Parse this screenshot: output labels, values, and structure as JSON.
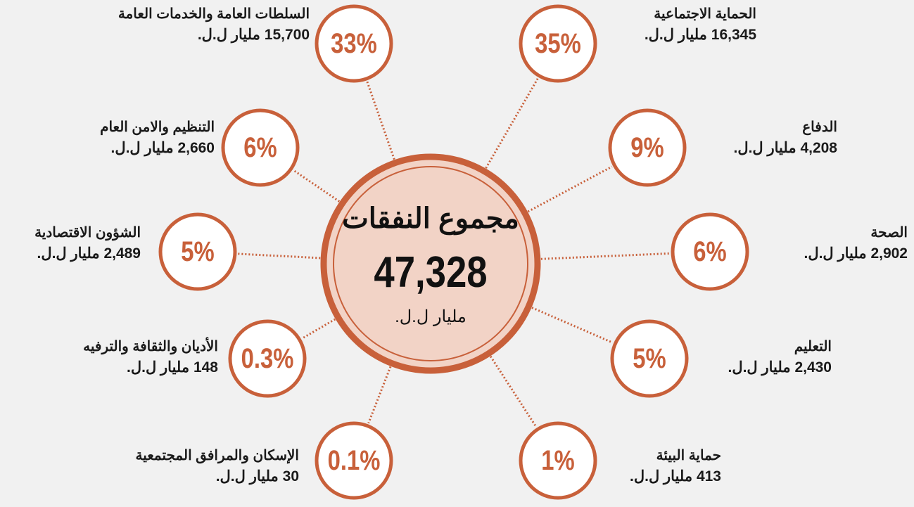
{
  "center": {
    "title": "مجموع النفقات",
    "total": "47,328",
    "unit": "مليار ل.ل."
  },
  "nodes": [
    {
      "percent": "33%",
      "label": "السلطات العامة والخدمات العامة",
      "amount": "15,700 مليار ل.ل."
    },
    {
      "percent": "35%",
      "label": "الحماية الاجتماعية",
      "amount": "16,345 مليار ل.ل."
    },
    {
      "percent": "6%",
      "label": "التنظيم والامن العام",
      "amount": "2,660 مليار ل.ل."
    },
    {
      "percent": "9%",
      "label": "الدفاع",
      "amount": "4,208 مليار ل.ل."
    },
    {
      "percent": "5%",
      "label": "الشؤون الاقتصادية",
      "amount": "2,489 مليار ل.ل."
    },
    {
      "percent": "6%",
      "label": "الصحة",
      "amount": "2,902 مليار ل.ل."
    },
    {
      "percent": "0.3%",
      "label": "الأديان والثقافة والترفيه",
      "amount": "148 مليار ل.ل."
    },
    {
      "percent": "5%",
      "label": "التعليم",
      "amount": "2,430 مليار ل.ل."
    },
    {
      "percent": "0.1%",
      "label": "الإسكان والمرافق المجتمعية",
      "amount": "30 مليار ل.ل."
    },
    {
      "percent": "1%",
      "label": "حماية البيئة",
      "amount": "413 مليار ل.ل."
    }
  ]
}
